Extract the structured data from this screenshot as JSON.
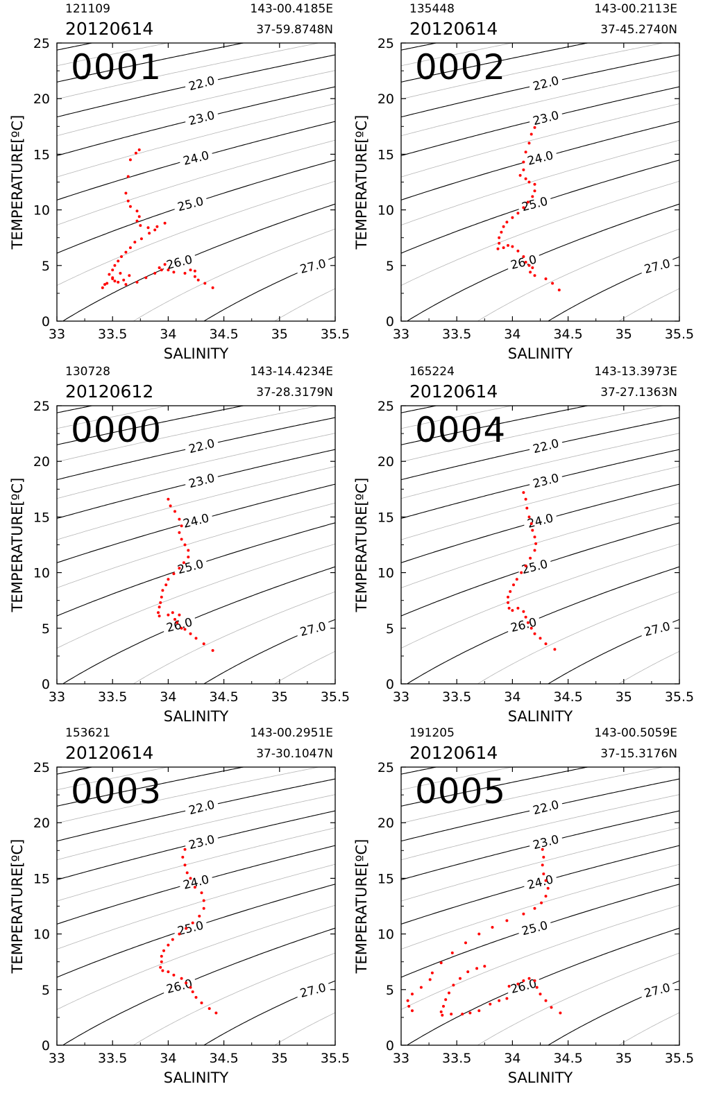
{
  "figure": {
    "xlabel": "SALINITY",
    "ylabel": "TEMPERATURE[ºC]",
    "xlim": [
      33,
      35.5
    ],
    "ylim": [
      0,
      25
    ],
    "xticks": [
      "33",
      "33.5",
      "34",
      "34.5",
      "35",
      "35.5"
    ],
    "yticks": [
      "0",
      "5",
      "10",
      "15",
      "20",
      "25"
    ],
    "isopycnal_labels": [
      "22.0",
      "23.0",
      "24.0",
      "25.0",
      "26.0",
      "27.0"
    ],
    "colors": {
      "profile": "#ff0000",
      "major_contour": "#000000",
      "minor_contour": "#b5b5b5"
    }
  },
  "chart_data": [
    {
      "type": "scatter",
      "station": "0001",
      "time": "121109",
      "date": "20120614",
      "longitude": "143-00.4185E",
      "latitude": "37-59.8748N",
      "xlabel": "SALINITY",
      "ylabel": "TEMPERATURE[ºC]",
      "xlim": [
        33,
        35.5
      ],
      "ylim": [
        0,
        25
      ],
      "profile": [
        [
          33.74,
          15.4
        ],
        [
          33.71,
          15.1
        ],
        [
          33.66,
          14.5
        ],
        [
          33.64,
          13.0
        ],
        [
          33.62,
          11.5
        ],
        [
          33.64,
          10.8
        ],
        [
          33.66,
          10.3
        ],
        [
          33.72,
          9.9
        ],
        [
          33.74,
          9.4
        ],
        [
          33.72,
          9.0
        ],
        [
          33.75,
          8.6
        ],
        [
          33.82,
          8.4
        ],
        [
          33.9,
          8.5
        ],
        [
          33.97,
          8.8
        ],
        [
          33.88,
          8.2
        ],
        [
          33.83,
          7.9
        ],
        [
          33.76,
          7.4
        ],
        [
          33.7,
          7.1
        ],
        [
          33.66,
          6.6
        ],
        [
          33.62,
          6.2
        ],
        [
          33.58,
          5.8
        ],
        [
          33.55,
          5.4
        ],
        [
          33.52,
          5.0
        ],
        [
          33.5,
          4.6
        ],
        [
          33.47,
          4.2
        ],
        [
          33.5,
          3.8
        ],
        [
          33.55,
          3.5
        ],
        [
          33.6,
          3.7
        ],
        [
          33.65,
          4.1
        ],
        [
          33.57,
          4.3
        ],
        [
          33.5,
          3.9
        ],
        [
          33.45,
          3.4
        ],
        [
          33.41,
          3.0
        ],
        [
          33.43,
          3.3
        ],
        [
          33.52,
          3.6
        ],
        [
          33.62,
          3.3
        ],
        [
          33.72,
          3.5
        ],
        [
          33.8,
          3.9
        ],
        [
          33.88,
          4.3
        ],
        [
          33.94,
          4.6
        ],
        [
          33.97,
          5.1
        ],
        [
          33.92,
          4.8
        ],
        [
          34.0,
          4.6
        ],
        [
          34.05,
          4.4
        ],
        [
          34.15,
          4.3
        ],
        [
          34.2,
          4.6
        ],
        [
          34.24,
          4.5
        ],
        [
          34.24,
          4.0
        ],
        [
          34.27,
          3.7
        ],
        [
          34.33,
          3.4
        ],
        [
          34.4,
          3.0
        ]
      ],
      "contours": [
        {
          "sigma": "22.0"
        },
        {
          "sigma": "23.0"
        },
        {
          "sigma": "24.0"
        },
        {
          "sigma": "25.0"
        },
        {
          "sigma": "26.0"
        },
        {
          "sigma": "27.0"
        }
      ]
    },
    {
      "type": "scatter",
      "station": "0002",
      "time": "135448",
      "date": "20120614",
      "longitude": "143-00.2113E",
      "latitude": "37-45.2740N",
      "xlabel": "SALINITY",
      "ylabel": "TEMPERATURE[ºC]",
      "xlim": [
        33,
        35.5
      ],
      "ylim": [
        0,
        25
      ],
      "profile": [
        [
          34.2,
          17.4
        ],
        [
          34.17,
          16.8
        ],
        [
          34.15,
          16.0
        ],
        [
          34.12,
          15.2
        ],
        [
          34.1,
          14.3
        ],
        [
          34.1,
          13.6
        ],
        [
          34.07,
          13.1
        ],
        [
          34.12,
          12.8
        ],
        [
          34.15,
          12.5
        ],
        [
          34.2,
          12.3
        ],
        [
          34.2,
          11.7
        ],
        [
          34.18,
          11.2
        ],
        [
          34.14,
          10.7
        ],
        [
          34.1,
          10.2
        ],
        [
          34.05,
          9.7
        ],
        [
          34.0,
          9.3
        ],
        [
          33.95,
          8.9
        ],
        [
          33.92,
          8.5
        ],
        [
          33.9,
          8.0
        ],
        [
          33.88,
          7.5
        ],
        [
          33.88,
          7.0
        ],
        [
          33.87,
          6.5
        ],
        [
          33.92,
          6.6
        ],
        [
          33.96,
          6.8
        ],
        [
          34.0,
          6.7
        ],
        [
          34.05,
          6.3
        ],
        [
          34.1,
          5.8
        ],
        [
          34.12,
          5.3
        ],
        [
          34.15,
          5.0
        ],
        [
          34.18,
          4.8
        ],
        [
          34.16,
          4.4
        ],
        [
          34.2,
          4.1
        ],
        [
          34.3,
          3.8
        ],
        [
          34.36,
          3.4
        ],
        [
          34.42,
          2.8
        ]
      ],
      "contours": [
        {
          "sigma": "22.0"
        },
        {
          "sigma": "23.0"
        },
        {
          "sigma": "24.0"
        },
        {
          "sigma": "25.0"
        },
        {
          "sigma": "26.0"
        },
        {
          "sigma": "27.0"
        }
      ]
    },
    {
      "type": "scatter",
      "station": "0000",
      "time": "130728",
      "date": "20120612",
      "longitude": "143-14.4234E",
      "latitude": "37-28.3179N",
      "xlabel": "SALINITY",
      "ylabel": "TEMPERATURE[ºC]",
      "xlim": [
        33,
        35.5
      ],
      "ylim": [
        0,
        25
      ],
      "profile": [
        [
          34.0,
          16.6
        ],
        [
          34.02,
          16.0
        ],
        [
          34.06,
          15.5
        ],
        [
          34.1,
          14.8
        ],
        [
          34.12,
          14.2
        ],
        [
          34.1,
          13.6
        ],
        [
          34.12,
          13.0
        ],
        [
          34.15,
          12.5
        ],
        [
          34.18,
          12.0
        ],
        [
          34.18,
          11.4
        ],
        [
          34.14,
          10.9
        ],
        [
          34.1,
          10.4
        ],
        [
          34.05,
          9.9
        ],
        [
          34.0,
          9.4
        ],
        [
          33.98,
          8.9
        ],
        [
          33.95,
          8.4
        ],
        [
          33.94,
          7.8
        ],
        [
          33.93,
          7.3
        ],
        [
          33.92,
          6.9
        ],
        [
          33.91,
          6.4
        ],
        [
          33.92,
          6.1
        ],
        [
          34.0,
          6.2
        ],
        [
          34.04,
          6.4
        ],
        [
          34.1,
          6.2
        ],
        [
          34.06,
          5.8
        ],
        [
          34.08,
          5.5
        ],
        [
          34.12,
          5.0
        ],
        [
          34.15,
          4.9
        ],
        [
          34.2,
          4.5
        ],
        [
          34.25,
          4.1
        ],
        [
          34.32,
          3.6
        ],
        [
          34.4,
          3.0
        ]
      ],
      "contours": [
        {
          "sigma": "22.0"
        },
        {
          "sigma": "23.0"
        },
        {
          "sigma": "24.0"
        },
        {
          "sigma": "25.0"
        },
        {
          "sigma": "26.0"
        },
        {
          "sigma": "27.0"
        }
      ]
    },
    {
      "type": "scatter",
      "station": "0004",
      "time": "165224",
      "date": "20120614",
      "longitude": "143-13.3973E",
      "latitude": "37-27.1363N",
      "xlabel": "SALINITY",
      "ylabel": "TEMPERATURE[ºC]",
      "xlim": [
        33,
        35.5
      ],
      "ylim": [
        0,
        25
      ],
      "profile": [
        [
          34.1,
          17.2
        ],
        [
          34.12,
          16.6
        ],
        [
          34.13,
          15.8
        ],
        [
          34.15,
          15.0
        ],
        [
          34.17,
          14.4
        ],
        [
          34.18,
          13.8
        ],
        [
          34.2,
          13.2
        ],
        [
          34.21,
          12.6
        ],
        [
          34.2,
          12.0
        ],
        [
          34.16,
          11.3
        ],
        [
          34.12,
          10.6
        ],
        [
          34.08,
          10.0
        ],
        [
          34.04,
          9.4
        ],
        [
          34.01,
          8.9
        ],
        [
          33.98,
          8.3
        ],
        [
          33.96,
          7.8
        ],
        [
          33.96,
          7.3
        ],
        [
          33.97,
          6.8
        ],
        [
          34.0,
          6.6
        ],
        [
          34.05,
          6.8
        ],
        [
          34.1,
          6.5
        ],
        [
          34.12,
          6.0
        ],
        [
          34.14,
          5.5
        ],
        [
          34.17,
          5.0
        ],
        [
          34.2,
          4.5
        ],
        [
          34.25,
          4.1
        ],
        [
          34.3,
          3.6
        ],
        [
          34.38,
          3.1
        ]
      ],
      "contours": [
        {
          "sigma": "22.0"
        },
        {
          "sigma": "23.0"
        },
        {
          "sigma": "24.0"
        },
        {
          "sigma": "25.0"
        },
        {
          "sigma": "26.0"
        },
        {
          "sigma": "27.0"
        }
      ]
    },
    {
      "type": "scatter",
      "station": "0003",
      "time": "153621",
      "date": "20120614",
      "longitude": "143-00.2951E",
      "latitude": "37-30.1047N",
      "xlabel": "SALINITY",
      "ylabel": "TEMPERATURE[ºC]",
      "xlim": [
        33,
        35.5
      ],
      "ylim": [
        0,
        25
      ],
      "profile": [
        [
          34.15,
          17.6
        ],
        [
          34.13,
          16.9
        ],
        [
          34.15,
          16.2
        ],
        [
          34.17,
          15.5
        ],
        [
          34.2,
          15.0
        ],
        [
          34.24,
          14.2
        ],
        [
          34.3,
          13.7
        ],
        [
          34.32,
          13.0
        ],
        [
          34.32,
          12.3
        ],
        [
          34.28,
          11.6
        ],
        [
          34.22,
          11.0
        ],
        [
          34.16,
          10.5
        ],
        [
          34.1,
          10.0
        ],
        [
          34.04,
          9.5
        ],
        [
          34.0,
          9.0
        ],
        [
          33.96,
          8.5
        ],
        [
          33.94,
          8.0
        ],
        [
          33.94,
          7.5
        ],
        [
          33.93,
          7.0
        ],
        [
          33.95,
          6.7
        ],
        [
          34.0,
          6.6
        ],
        [
          34.05,
          6.3
        ],
        [
          34.12,
          6.0
        ],
        [
          34.16,
          5.6
        ],
        [
          34.2,
          5.2
        ],
        [
          34.22,
          4.8
        ],
        [
          34.25,
          4.3
        ],
        [
          34.3,
          3.8
        ],
        [
          34.37,
          3.3
        ],
        [
          34.43,
          2.9
        ]
      ],
      "contours": [
        {
          "sigma": "22.0"
        },
        {
          "sigma": "23.0"
        },
        {
          "sigma": "24.0"
        },
        {
          "sigma": "25.0"
        },
        {
          "sigma": "26.0"
        },
        {
          "sigma": "27.0"
        }
      ]
    },
    {
      "type": "scatter",
      "station": "0005",
      "time": "191205",
      "date": "20120614",
      "longitude": "143-00.5059E",
      "latitude": "37-15.3176N",
      "xlabel": "SALINITY",
      "ylabel": "TEMPERATURE[ºC]",
      "xlim": [
        33,
        35.5
      ],
      "ylim": [
        0,
        25
      ],
      "profile": [
        [
          34.27,
          17.6
        ],
        [
          34.28,
          16.9
        ],
        [
          34.27,
          16.2
        ],
        [
          34.28,
          15.4
        ],
        [
          34.3,
          14.8
        ],
        [
          34.32,
          14.1
        ],
        [
          34.3,
          13.4
        ],
        [
          34.26,
          12.8
        ],
        [
          34.2,
          12.3
        ],
        [
          34.1,
          11.8
        ],
        [
          33.95,
          11.2
        ],
        [
          33.82,
          10.6
        ],
        [
          33.7,
          10.0
        ],
        [
          33.58,
          9.2
        ],
        [
          33.46,
          8.3
        ],
        [
          33.36,
          7.4
        ],
        [
          33.28,
          6.5
        ],
        [
          33.26,
          5.9
        ],
        [
          33.18,
          5.2
        ],
        [
          33.1,
          4.6
        ],
        [
          33.06,
          4.0
        ],
        [
          33.07,
          3.5
        ],
        [
          33.1,
          3.1
        ],
        [
          33.75,
          7.1
        ],
        [
          33.68,
          6.9
        ],
        [
          33.6,
          6.6
        ],
        [
          33.53,
          6.0
        ],
        [
          33.47,
          5.4
        ],
        [
          33.43,
          4.7
        ],
        [
          33.4,
          4.1
        ],
        [
          33.38,
          3.5
        ],
        [
          33.36,
          3.0
        ],
        [
          33.37,
          2.7
        ],
        [
          33.45,
          2.8
        ],
        [
          33.55,
          2.8
        ],
        [
          33.62,
          2.9
        ],
        [
          33.7,
          3.1
        ],
        [
          33.8,
          3.7
        ],
        [
          33.88,
          4.0
        ],
        [
          33.95,
          4.2
        ],
        [
          33.97,
          5.3
        ],
        [
          34.05,
          5.5
        ],
        [
          34.1,
          5.8
        ],
        [
          34.15,
          6.0
        ],
        [
          34.2,
          5.8
        ],
        [
          34.22,
          5.2
        ],
        [
          34.25,
          4.6
        ],
        [
          34.3,
          4.0
        ],
        [
          34.35,
          3.4
        ],
        [
          34.43,
          2.9
        ]
      ],
      "contours": [
        {
          "sigma": "22.0"
        },
        {
          "sigma": "23.0"
        },
        {
          "sigma": "24.0"
        },
        {
          "sigma": "25.0"
        },
        {
          "sigma": "26.0"
        },
        {
          "sigma": "27.0"
        }
      ]
    }
  ]
}
